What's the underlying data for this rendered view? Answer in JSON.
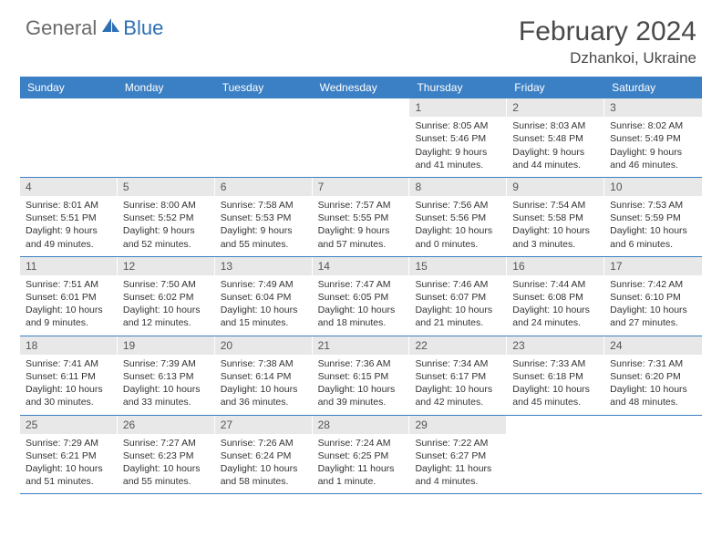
{
  "logo": {
    "textGray": "General",
    "textBlue": "Blue"
  },
  "title": "February 2024",
  "location": "Dzhankoi, Ukraine",
  "weekdays": [
    "Sunday",
    "Monday",
    "Tuesday",
    "Wednesday",
    "Thursday",
    "Friday",
    "Saturday"
  ],
  "colors": {
    "headerBar": "#3b7fc4",
    "dayNumBg": "#e8e8e8",
    "rowBorder": "#3b7fc4",
    "logoGray": "#6a6a6a",
    "logoBlue": "#2c6fb5"
  },
  "weeks": [
    [
      null,
      null,
      null,
      null,
      {
        "n": "1",
        "sr": "8:05 AM",
        "ss": "5:46 PM",
        "dl": "9 hours and 41 minutes."
      },
      {
        "n": "2",
        "sr": "8:03 AM",
        "ss": "5:48 PM",
        "dl": "9 hours and 44 minutes."
      },
      {
        "n": "3",
        "sr": "8:02 AM",
        "ss": "5:49 PM",
        "dl": "9 hours and 46 minutes."
      }
    ],
    [
      {
        "n": "4",
        "sr": "8:01 AM",
        "ss": "5:51 PM",
        "dl": "9 hours and 49 minutes."
      },
      {
        "n": "5",
        "sr": "8:00 AM",
        "ss": "5:52 PM",
        "dl": "9 hours and 52 minutes."
      },
      {
        "n": "6",
        "sr": "7:58 AM",
        "ss": "5:53 PM",
        "dl": "9 hours and 55 minutes."
      },
      {
        "n": "7",
        "sr": "7:57 AM",
        "ss": "5:55 PM",
        "dl": "9 hours and 57 minutes."
      },
      {
        "n": "8",
        "sr": "7:56 AM",
        "ss": "5:56 PM",
        "dl": "10 hours and 0 minutes."
      },
      {
        "n": "9",
        "sr": "7:54 AM",
        "ss": "5:58 PM",
        "dl": "10 hours and 3 minutes."
      },
      {
        "n": "10",
        "sr": "7:53 AM",
        "ss": "5:59 PM",
        "dl": "10 hours and 6 minutes."
      }
    ],
    [
      {
        "n": "11",
        "sr": "7:51 AM",
        "ss": "6:01 PM",
        "dl": "10 hours and 9 minutes."
      },
      {
        "n": "12",
        "sr": "7:50 AM",
        "ss": "6:02 PM",
        "dl": "10 hours and 12 minutes."
      },
      {
        "n": "13",
        "sr": "7:49 AM",
        "ss": "6:04 PM",
        "dl": "10 hours and 15 minutes."
      },
      {
        "n": "14",
        "sr": "7:47 AM",
        "ss": "6:05 PM",
        "dl": "10 hours and 18 minutes."
      },
      {
        "n": "15",
        "sr": "7:46 AM",
        "ss": "6:07 PM",
        "dl": "10 hours and 21 minutes."
      },
      {
        "n": "16",
        "sr": "7:44 AM",
        "ss": "6:08 PM",
        "dl": "10 hours and 24 minutes."
      },
      {
        "n": "17",
        "sr": "7:42 AM",
        "ss": "6:10 PM",
        "dl": "10 hours and 27 minutes."
      }
    ],
    [
      {
        "n": "18",
        "sr": "7:41 AM",
        "ss": "6:11 PM",
        "dl": "10 hours and 30 minutes."
      },
      {
        "n": "19",
        "sr": "7:39 AM",
        "ss": "6:13 PM",
        "dl": "10 hours and 33 minutes."
      },
      {
        "n": "20",
        "sr": "7:38 AM",
        "ss": "6:14 PM",
        "dl": "10 hours and 36 minutes."
      },
      {
        "n": "21",
        "sr": "7:36 AM",
        "ss": "6:15 PM",
        "dl": "10 hours and 39 minutes."
      },
      {
        "n": "22",
        "sr": "7:34 AM",
        "ss": "6:17 PM",
        "dl": "10 hours and 42 minutes."
      },
      {
        "n": "23",
        "sr": "7:33 AM",
        "ss": "6:18 PM",
        "dl": "10 hours and 45 minutes."
      },
      {
        "n": "24",
        "sr": "7:31 AM",
        "ss": "6:20 PM",
        "dl": "10 hours and 48 minutes."
      }
    ],
    [
      {
        "n": "25",
        "sr": "7:29 AM",
        "ss": "6:21 PM",
        "dl": "10 hours and 51 minutes."
      },
      {
        "n": "26",
        "sr": "7:27 AM",
        "ss": "6:23 PM",
        "dl": "10 hours and 55 minutes."
      },
      {
        "n": "27",
        "sr": "7:26 AM",
        "ss": "6:24 PM",
        "dl": "10 hours and 58 minutes."
      },
      {
        "n": "28",
        "sr": "7:24 AM",
        "ss": "6:25 PM",
        "dl": "11 hours and 1 minute."
      },
      {
        "n": "29",
        "sr": "7:22 AM",
        "ss": "6:27 PM",
        "dl": "11 hours and 4 minutes."
      },
      null,
      null
    ]
  ],
  "labels": {
    "sunrise": "Sunrise:",
    "sunset": "Sunset:",
    "daylight": "Daylight:"
  }
}
